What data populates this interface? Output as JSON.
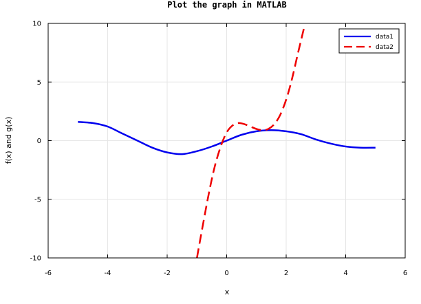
{
  "chart_data": {
    "type": "line",
    "title": "Plot the graph in MATLAB",
    "xlabel": "x",
    "ylabel": "f(x) and g(x)",
    "xlim": [
      -6,
      6
    ],
    "ylim": [
      -10,
      10
    ],
    "xticks": [
      "-6",
      "-4",
      "-2",
      "0",
      "2",
      "4",
      "6"
    ],
    "yticks": [
      "-10",
      "-5",
      "0",
      "5",
      "10"
    ],
    "grid": true,
    "legend_position": "top-right",
    "series": [
      {
        "name": "data1",
        "color": "#0000ee",
        "style": "solid",
        "x": [
          -5.0,
          -4.5,
          -4.0,
          -3.5,
          -3.0,
          -2.5,
          -2.0,
          -1.5,
          -1.0,
          -0.5,
          0.0,
          0.5,
          1.0,
          1.5,
          2.0,
          2.5,
          3.0,
          3.5,
          4.0,
          4.5,
          5.0
        ],
        "y": [
          1.6,
          1.5,
          1.2,
          0.6,
          0.0,
          -0.6,
          -1.0,
          -1.15,
          -0.9,
          -0.5,
          0.0,
          0.5,
          0.8,
          0.9,
          0.8,
          0.55,
          0.1,
          -0.25,
          -0.5,
          -0.6,
          -0.6
        ]
      },
      {
        "name": "data2",
        "color": "#ee0000",
        "style": "dashed",
        "x": [
          -1.0,
          -0.8,
          -0.6,
          -0.4,
          -0.2,
          0.0,
          0.2,
          0.4,
          0.6,
          0.8,
          1.0,
          1.2,
          1.4,
          1.6,
          1.8,
          2.0,
          2.2,
          2.4,
          2.6
        ],
        "y": [
          -10.0,
          -7.2,
          -4.5,
          -2.2,
          -0.5,
          0.7,
          1.3,
          1.5,
          1.4,
          1.2,
          1.0,
          0.9,
          1.0,
          1.4,
          2.2,
          3.5,
          5.3,
          7.5,
          9.6
        ]
      }
    ]
  }
}
